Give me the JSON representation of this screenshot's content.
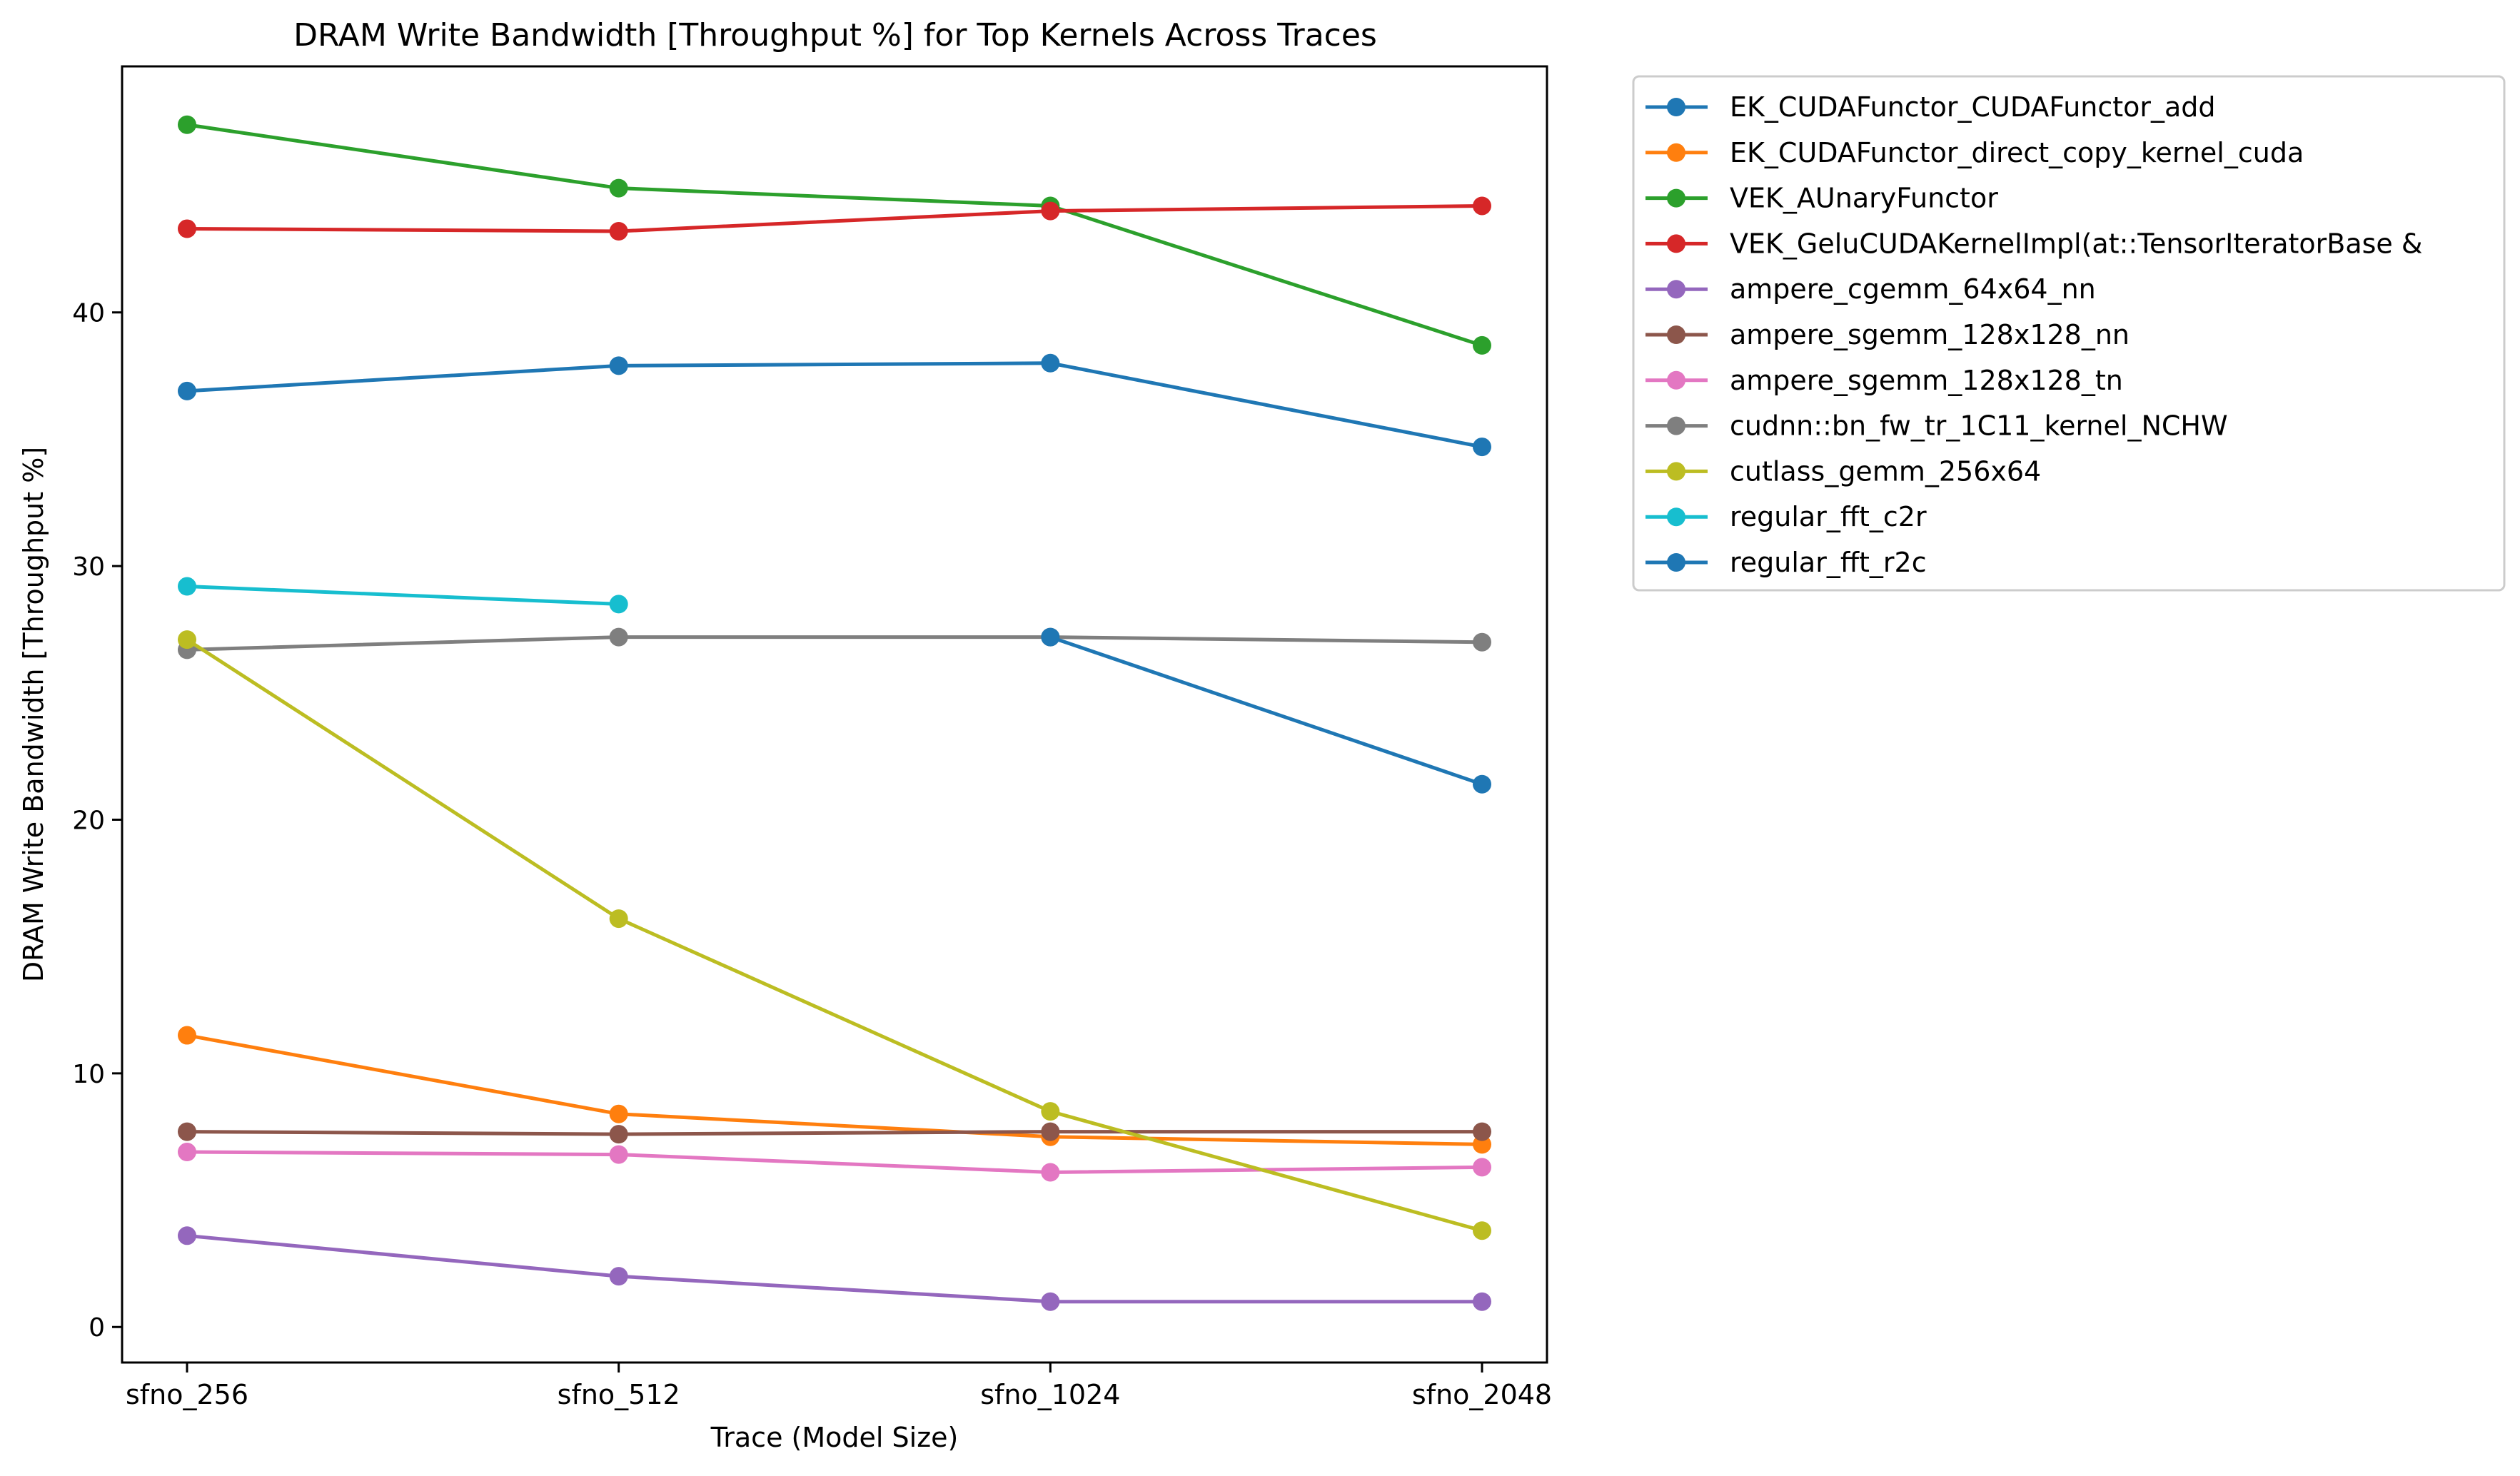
{
  "chart_data": {
    "type": "line",
    "title": "DRAM Write Bandwidth [Throughput %] for Top Kernels Across Traces",
    "xlabel": "Trace (Model Size)",
    "ylabel": "DRAM Write Bandwidth [Throughput %]",
    "categories": [
      "sfno_256",
      "sfno_512",
      "sfno_1024",
      "sfno_2048"
    ],
    "ylim": [
      -1.4,
      49.7
    ],
    "yticks": [
      0,
      10,
      20,
      30,
      40
    ],
    "grid": false,
    "legend_position": "outside-right",
    "series": [
      {
        "name": "EK_CUDAFunctor_CUDAFunctor_add",
        "color": "#1f77b4",
        "values": [
          36.9,
          37.9,
          38.0,
          34.7
        ]
      },
      {
        "name": "EK_CUDAFunctor_direct_copy_kernel_cuda",
        "color": "#ff7f0e",
        "values": [
          11.5,
          8.4,
          7.5,
          7.2
        ]
      },
      {
        "name": "VEK_AUnaryFunctor",
        "color": "#2ca02c",
        "values": [
          47.4,
          44.9,
          44.2,
          38.7
        ]
      },
      {
        "name": "VEK_GeluCUDAKernelImpl(at::TensorIteratorBase &",
        "color": "#d62728",
        "values": [
          43.3,
          43.2,
          44.0,
          44.2
        ]
      },
      {
        "name": "ampere_cgemm_64x64_nn",
        "color": "#9467bd",
        "values": [
          3.6,
          2.0,
          1.0,
          1.0
        ]
      },
      {
        "name": "ampere_sgemm_128x128_nn",
        "color": "#8c564b",
        "values": [
          7.7,
          7.6,
          7.7,
          7.7
        ]
      },
      {
        "name": "ampere_sgemm_128x128_tn",
        "color": "#e377c2",
        "values": [
          6.9,
          6.8,
          6.1,
          6.3
        ]
      },
      {
        "name": "cudnn::bn_fw_tr_1C11_kernel_NCHW",
        "color": "#7f7f7f",
        "values": [
          26.7,
          27.2,
          27.2,
          27.0
        ]
      },
      {
        "name": "cutlass_gemm_256x64",
        "color": "#bcbd22",
        "values": [
          27.1,
          16.1,
          8.5,
          3.8
        ]
      },
      {
        "name": "regular_fft_c2r",
        "color": "#17becf",
        "values": [
          29.2,
          28.5,
          null,
          null
        ]
      },
      {
        "name": "regular_fft_r2c",
        "color": "#1f77b4",
        "values": [
          null,
          null,
          27.2,
          21.4
        ]
      }
    ]
  }
}
